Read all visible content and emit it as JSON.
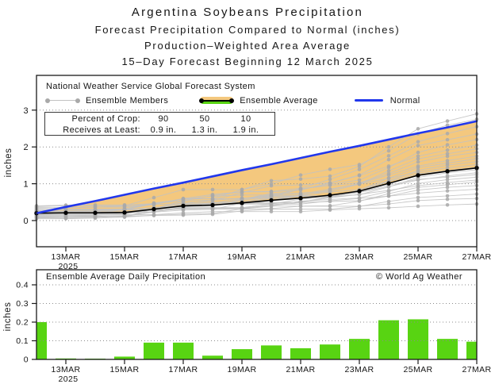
{
  "title": {
    "line1": "Argentina Soybeans Precipitation",
    "line2": "Forecast Precipitation Compared to Normal (inches)",
    "line3": "Production–Weighted Area Average",
    "line4": "15–Day Forecast Beginning 12 March 2025"
  },
  "legend": {
    "source_line": "National Weather Service Global Forecast System",
    "items": [
      {
        "label": "Ensemble Members"
      },
      {
        "label": "Ensemble Average"
      },
      {
        "label": "Normal"
      }
    ]
  },
  "info_box": {
    "row1_label": "Percent of Crop:",
    "row1_values": [
      "90",
      "50",
      "10"
    ],
    "row2_label": "Receives at Least:",
    "row2_values": [
      "0.9 in.",
      "1.3 in.",
      "1.9 in."
    ]
  },
  "colors": {
    "normal_line": "#2137ec",
    "ensemble_average_line": "#000000",
    "ensemble_member_line": "#c2c2c2",
    "ensemble_member_dot": "#a9a9a9",
    "deficit_fill": "#f4c87e",
    "surplus_green": "#58d412",
    "bar_green": "#58d412",
    "grid": "#8c8c8c"
  },
  "chart_data": [
    {
      "type": "line",
      "title": "Forecast cumulative precipitation vs normal",
      "x_days": [
        "12MAR",
        "13MAR",
        "14MAR",
        "15MAR",
        "16MAR",
        "17MAR",
        "18MAR",
        "19MAR",
        "20MAR",
        "21MAR",
        "22MAR",
        "23MAR",
        "24MAR",
        "25MAR",
        "26MAR",
        "27MAR"
      ],
      "x_tick_labels": [
        "13MAR",
        "15MAR",
        "17MAR",
        "19MAR",
        "21MAR",
        "23MAR",
        "25MAR",
        "27MAR"
      ],
      "x_tick_indices": [
        1,
        3,
        5,
        7,
        9,
        11,
        13,
        15
      ],
      "x_year_label": "2025",
      "ylabel": "inches",
      "ylim": [
        -0.7,
        3.95
      ],
      "yticks": [
        0,
        1,
        2,
        3
      ],
      "ytick_labels": [
        "0",
        "1",
        "2",
        "3"
      ],
      "grid": true,
      "legend_position": "top-inside",
      "series": [
        {
          "name": "Normal",
          "color": "#2137ec",
          "values": [
            0.2,
            0.37,
            0.53,
            0.7,
            0.87,
            1.03,
            1.2,
            1.37,
            1.53,
            1.7,
            1.87,
            2.03,
            2.2,
            2.37,
            2.53,
            2.7
          ]
        },
        {
          "name": "Ensemble Average",
          "color": "#000000",
          "values": [
            0.2,
            0.21,
            0.21,
            0.22,
            0.31,
            0.4,
            0.42,
            0.48,
            0.55,
            0.61,
            0.69,
            0.8,
            1.01,
            1.23,
            1.34,
            1.43
          ]
        }
      ],
      "fill_between": {
        "upper": "Normal",
        "lower": "Ensemble Average",
        "color": "#f4c87e"
      },
      "ensemble_members": {
        "count": 24,
        "line_color": "#c2c2c2",
        "dot_color": "#a9a9a9",
        "start_values": [
          0.15,
          0.22,
          0.08,
          0.3,
          0.19,
          0.05,
          0.27,
          0.12,
          0.35,
          0.18,
          0.1,
          0.24,
          0.4,
          0.16,
          0.07,
          0.21,
          0.28,
          0.13,
          0.33,
          0.09,
          0.25,
          0.17,
          0.38,
          0.2
        ],
        "end_values": [
          0.45,
          0.6,
          0.72,
          0.85,
          0.95,
          1.05,
          1.1,
          1.18,
          1.25,
          1.3,
          1.38,
          1.45,
          1.52,
          1.6,
          1.68,
          1.75,
          1.85,
          1.95,
          2.05,
          2.2,
          2.35,
          2.55,
          2.75,
          2.9
        ]
      }
    },
    {
      "type": "bar",
      "title": "Ensemble Average Daily Precipitation",
      "watermark": "© World Ag Weather",
      "categories": [
        "12MAR",
        "13MAR",
        "14MAR",
        "15MAR",
        "16MAR",
        "17MAR",
        "18MAR",
        "19MAR",
        "20MAR",
        "21MAR",
        "22MAR",
        "23MAR",
        "24MAR",
        "25MAR",
        "26MAR",
        "27MAR"
      ],
      "values": [
        0.2,
        0.005,
        0.004,
        0.015,
        0.09,
        0.09,
        0.02,
        0.055,
        0.075,
        0.06,
        0.08,
        0.11,
        0.21,
        0.215,
        0.11,
        0.095
      ],
      "x_tick_labels": [
        "13MAR",
        "15MAR",
        "17MAR",
        "19MAR",
        "21MAR",
        "23MAR",
        "25MAR",
        "27MAR"
      ],
      "x_tick_indices": [
        1,
        3,
        5,
        7,
        9,
        11,
        13,
        15
      ],
      "x_year_label": "2025",
      "ylabel": "inches",
      "ylim": [
        0,
        0.48
      ],
      "yticks": [
        0,
        0.1,
        0.2,
        0.3,
        0.4
      ],
      "ytick_labels": [
        "0",
        "0.1",
        "0.2",
        "0.3",
        "0.4"
      ],
      "grid": true,
      "bar_color": "#58d412"
    }
  ]
}
